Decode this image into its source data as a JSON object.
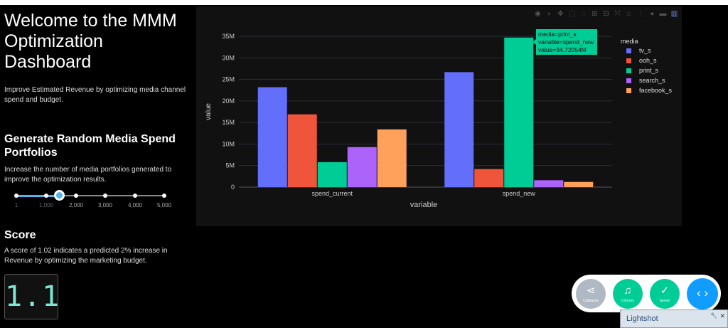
{
  "page": {
    "title": "Welcome to the MMM Optimization Dashboard",
    "subtitle": "Improve Estimated Revenue by optimizing media channel spend and budget."
  },
  "portfolio": {
    "heading": "Generate Random Media Spend Portfolios",
    "description": "Increase the number of media portfolios generated to improve the optimization results.",
    "slider_marks": [
      "1",
      "1,000",
      "2,000",
      "3,000",
      "4,000",
      "5,000"
    ],
    "slider_value": 1500,
    "slider_min": 1,
    "slider_max": 5000
  },
  "score": {
    "heading": "Score",
    "description": "A score of 1.02 indicates a predicted 2% increase in Revenue by optimizing the marketing budget.",
    "display": "1.1"
  },
  "modebar": {
    "icons": [
      "camera-icon",
      "zoom-icon",
      "pan-icon",
      "box-select-icon",
      "lasso-icon",
      "zoom-in-icon",
      "zoom-out-icon",
      "autoscale-icon",
      "reset-axes-icon",
      "spike-lines-icon",
      "hover-closest-icon",
      "hover-compare-icon",
      "plotly-logo-icon"
    ]
  },
  "chart_data": {
    "type": "bar",
    "categories": [
      "spend_current",
      "spend_new"
    ],
    "series": [
      {
        "name": "tv_s",
        "values": [
          23.2,
          26.7
        ],
        "color": "#636efa"
      },
      {
        "name": "ooh_s",
        "values": [
          16.9,
          4.2
        ],
        "color": "#ef553b"
      },
      {
        "name": "print_s",
        "values": [
          5.8,
          34.72054
        ],
        "color": "#00cc96"
      },
      {
        "name": "search_s",
        "values": [
          9.3,
          1.6
        ],
        "color": "#ab63fa"
      },
      {
        "name": "facebook_s",
        "values": [
          13.4,
          1.2
        ],
        "color": "#ffa15a"
      }
    ],
    "xlabel": "variable",
    "ylabel": "value",
    "legend_title": "media",
    "ylim": [
      0,
      37
    ],
    "yticks": [
      0,
      5,
      10,
      15,
      20,
      25,
      30,
      35
    ],
    "ytick_labels": [
      "0",
      "5M",
      "10M",
      "15M",
      "20M",
      "25M",
      "30M",
      "35M"
    ],
    "legend_position": "right",
    "tooltip": {
      "lines": [
        "media=print_s",
        "variable=spend_new",
        "value=34.72054M"
      ],
      "color": "#00cc96"
    }
  },
  "devtools": {
    "callbacks_label": "Callbacks",
    "errors_label": "0 Errors",
    "server_label": "Server",
    "colors": {
      "callbacks": "#b0b8c4",
      "errors": "#00cc96",
      "server": "#00cc96",
      "toggle": "#119dff"
    }
  },
  "lightshot": {
    "title": "Lightshot"
  }
}
